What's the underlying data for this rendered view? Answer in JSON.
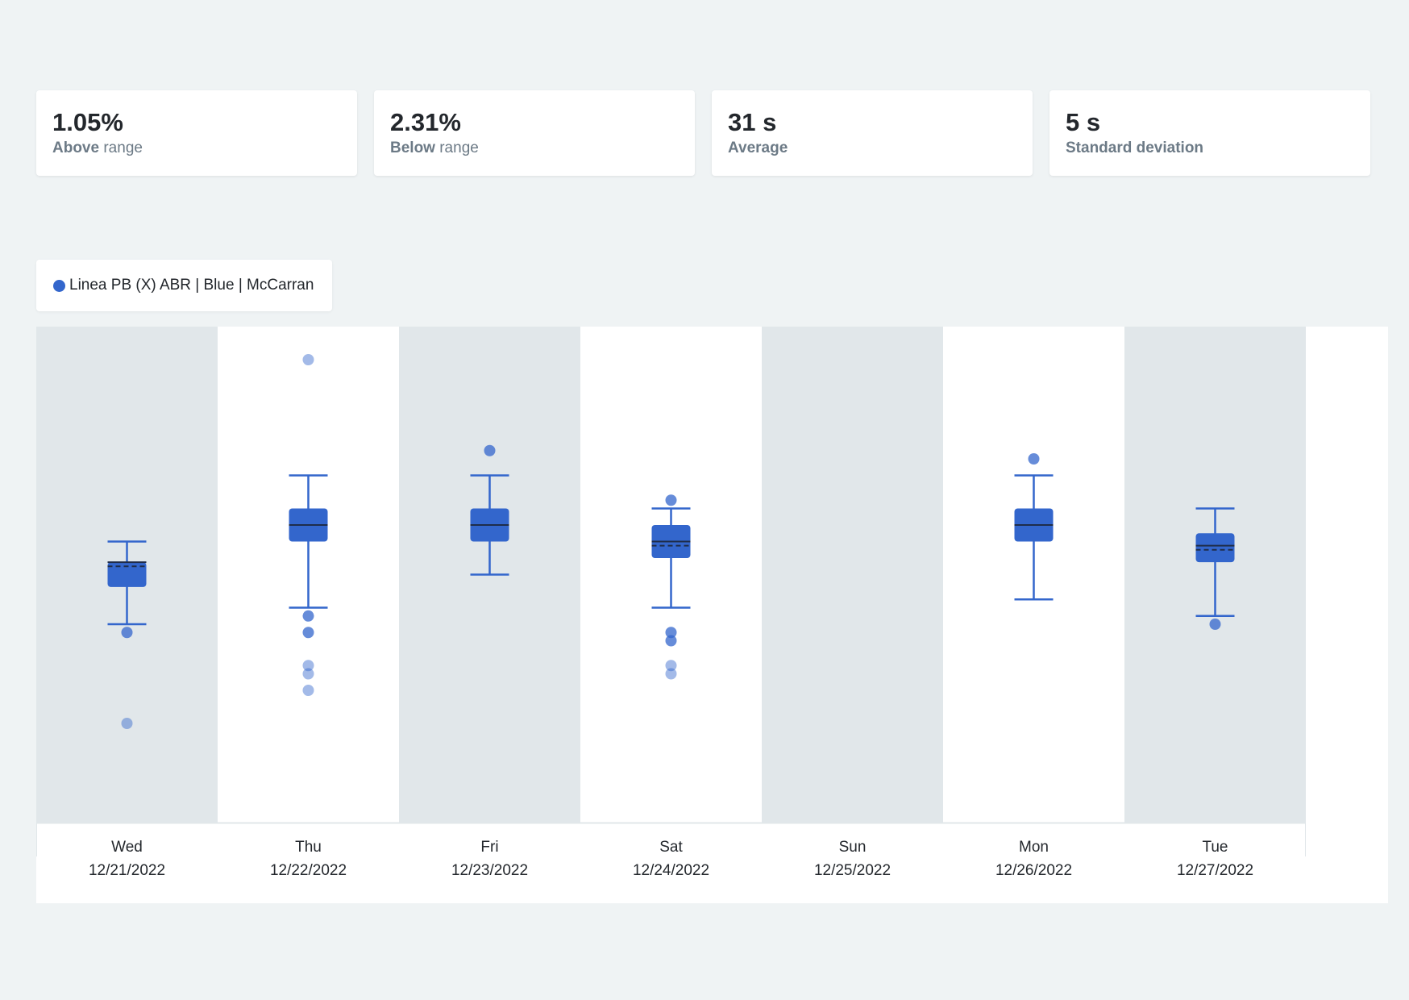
{
  "stats": [
    {
      "value": "1.05%",
      "label_bold": "Above",
      "label_rest": " range"
    },
    {
      "value": "2.31%",
      "label_bold": "Below",
      "label_rest": " range"
    },
    {
      "value": "31 s",
      "label_bold": "Average",
      "label_rest": ""
    },
    {
      "value": "5 s",
      "label_bold": "Standard deviation",
      "label_rest": ""
    }
  ],
  "legend": {
    "label": "Linea PB (X) ABR | Blue | McCarran",
    "color": "#3366cc"
  },
  "colors": {
    "accent": "#3366cc",
    "band_shaded": "#e1e7ea",
    "band_plain": "#ffffff"
  },
  "chart_data": {
    "type": "box",
    "series_name": "Linea PB (X) ABR | Blue | McCarran",
    "ylim": [
      0,
      60
    ],
    "grid": false,
    "legend_position": "top-left",
    "categories": [
      {
        "day": "Wed",
        "date": "12/21/2022",
        "shaded": true,
        "box": {
          "whisker_low": 24,
          "q1": 28.5,
          "median": 31.5,
          "mean": 31,
          "q3": 31.5,
          "whisker_high": 34
        },
        "outliers": [
          23,
          12
        ]
      },
      {
        "day": "Thu",
        "date": "12/22/2022",
        "shaded": false,
        "box": {
          "whisker_low": 26,
          "q1": 34,
          "median": 36,
          "mean": 36,
          "q3": 38,
          "whisker_high": 42
        },
        "outliers": [
          25,
          23,
          19,
          18,
          16,
          56
        ]
      },
      {
        "day": "Fri",
        "date": "12/23/2022",
        "shaded": true,
        "box": {
          "whisker_low": 30,
          "q1": 34,
          "median": 36,
          "mean": 36,
          "q3": 38,
          "whisker_high": 42
        },
        "outliers": [
          45
        ]
      },
      {
        "day": "Sat",
        "date": "12/24/2022",
        "shaded": false,
        "box": {
          "whisker_low": 26,
          "q1": 32,
          "median": 34,
          "mean": 33.5,
          "q3": 36,
          "whisker_high": 38
        },
        "outliers": [
          39,
          23,
          22,
          19,
          18
        ]
      },
      {
        "day": "Sun",
        "date": "12/25/2022",
        "shaded": true,
        "box": null,
        "outliers": []
      },
      {
        "day": "Mon",
        "date": "12/26/2022",
        "shaded": false,
        "box": {
          "whisker_low": 27,
          "q1": 34,
          "median": 36,
          "mean": 36,
          "q3": 38,
          "whisker_high": 42
        },
        "outliers": [
          44
        ]
      },
      {
        "day": "Tue",
        "date": "12/27/2022",
        "shaded": true,
        "box": {
          "whisker_low": 25,
          "q1": 31.5,
          "median": 33.5,
          "mean": 33,
          "q3": 35,
          "whisker_high": 38
        },
        "outliers": [
          24
        ]
      }
    ]
  }
}
